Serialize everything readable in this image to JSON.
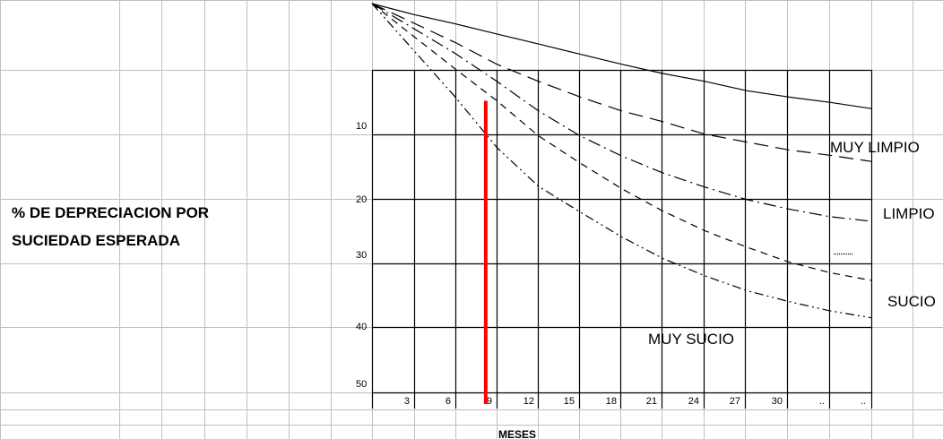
{
  "chart_data": {
    "type": "line",
    "ylabel_lines": [
      "% DE DEPRECIACION POR",
      "SUCIEDAD ESPERADA"
    ],
    "xlabel": "MESES",
    "x_tick_labels": [
      "3",
      "6",
      "9",
      "12",
      "15",
      "18",
      "21",
      "24",
      "27",
      "30",
      "..",
      ".."
    ],
    "y_tick_labels": [
      "10",
      "20",
      "30",
      "40",
      "50"
    ],
    "xlim": [
      0,
      36
    ],
    "ylim": [
      0,
      50
    ],
    "y_inverted": true,
    "grid": true,
    "series": [
      {
        "name": "MUY LIMPIO",
        "style": "solid",
        "x": [
          0,
          3,
          6,
          9,
          12,
          15,
          18,
          21,
          24,
          27,
          30,
          33,
          36
        ],
        "y": [
          0,
          1.4,
          2.6,
          3.9,
          5.2,
          6.5,
          7.8,
          9.0,
          10.0,
          11.2,
          12.0,
          12.7,
          13.5
        ]
      },
      {
        "name": "LIMPIO",
        "style": "long-dash",
        "x": [
          0,
          3,
          6,
          9,
          12,
          15,
          18,
          21,
          24,
          27,
          30,
          33,
          36
        ],
        "y": [
          0,
          2.5,
          5.0,
          7.8,
          10.0,
          12.0,
          13.8,
          15.2,
          16.8,
          17.8,
          18.8,
          19.5,
          20.3
        ]
      },
      {
        "name": "",
        "style": "dash-dot",
        "x": [
          0,
          3,
          6,
          9,
          12,
          15,
          18,
          21,
          24,
          27,
          30,
          33,
          36
        ],
        "y": [
          0,
          3.2,
          6.4,
          10.0,
          13.8,
          17.0,
          19.6,
          21.8,
          23.6,
          25.2,
          26.4,
          27.4,
          28.0
        ]
      },
      {
        "name": "SUCIO",
        "style": "dashed",
        "x": [
          0,
          3,
          6,
          9,
          12,
          15,
          18,
          21,
          24,
          27,
          30,
          33,
          36
        ],
        "y": [
          0,
          4.2,
          8.4,
          12.5,
          17.0,
          20.5,
          23.8,
          26.7,
          29.2,
          31.3,
          33.2,
          34.6,
          35.6
        ]
      },
      {
        "name": "MUY SUCIO",
        "style": "dash-dot-dot",
        "x": [
          0,
          3,
          6,
          9,
          12,
          15,
          18,
          21,
          24,
          27,
          30,
          33,
          36
        ],
        "y": [
          0,
          6.0,
          12.0,
          18.5,
          23.5,
          26.8,
          30.0,
          32.8,
          35.0,
          36.9,
          38.3,
          39.5,
          40.4
        ]
      }
    ],
    "series_labels": [
      {
        "text": "MUY LIMPIO",
        "series": "MUY LIMPIO"
      },
      {
        "text": "LIMPIO",
        "series": "LIMPIO"
      },
      {
        "text": "SUCIO",
        "series": "SUCIO"
      },
      {
        "text": "MUY SUCIO",
        "series": "MUY SUCIO"
      }
    ],
    "marker_line": {
      "x": 8.2,
      "y_from": 12.5,
      "y_to": 51.5,
      "color": "#ff0000"
    },
    "colors": {
      "grid": "#c0c0c0",
      "plot_grid": "#000000",
      "curves": "#000000",
      "marker": "#ff0000"
    }
  }
}
